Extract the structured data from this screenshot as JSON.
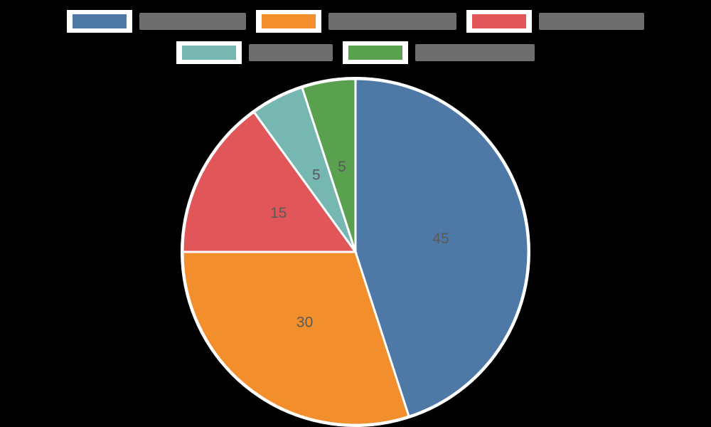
{
  "chart_data": {
    "type": "pie",
    "title": "",
    "legend_position": "top",
    "labels_note": "Legend labels are illegible (obscured) in the source image",
    "categories": [
      "[illegible label 1]",
      "[illegible label 2]",
      "[illegible label 3]",
      "[illegible label 4]",
      "[illegible label 5]"
    ],
    "values": [
      45,
      30,
      15,
      5,
      5
    ],
    "colors": [
      "#4e79a7",
      "#f28e2b",
      "#e15759",
      "#76b7b2",
      "#59a14f"
    ],
    "start_angle_deg": 0,
    "direction": "clockwise"
  },
  "legend": {
    "items": [
      {
        "label": "[illegible label 1]",
        "color": "#4e79a7",
        "label_width": 150
      },
      {
        "label": "[illegible label 2]",
        "color": "#f28e2b",
        "label_width": 180
      },
      {
        "label": "[illegible label 3]",
        "color": "#e15759",
        "label_width": 148
      },
      {
        "label": "[illegible label 4]",
        "color": "#76b7b2",
        "label_width": 118
      },
      {
        "label": "[illegible label 5]",
        "color": "#59a14f",
        "label_width": 168
      }
    ]
  },
  "slice_labels": [
    "45",
    "30",
    "15",
    "5",
    "5"
  ]
}
